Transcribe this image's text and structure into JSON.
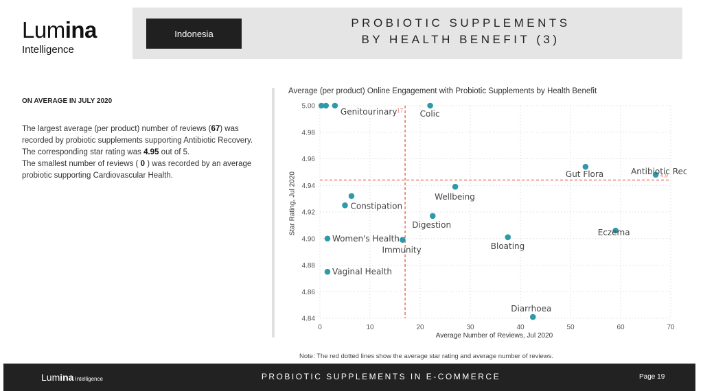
{
  "brand": {
    "name_light": "Lum",
    "name_bold": "ina",
    "sub": "Intelligence",
    "footer_sub": "Intelligence"
  },
  "header": {
    "country": "Indonesia",
    "title_line1": "PROBIOTIC SUPPLEMENTS",
    "title_line2": "BY HEALTH BENEFIT (3)"
  },
  "summary": {
    "heading": "ON AVERAGE IN JULY 2020",
    "p1_a": "The largest average (per product) number of reviews (",
    "p1_val": "67",
    "p1_b": ") was recorded by probiotic supplements supporting",
    "p1_benefit": "Antibiotic Recovery.",
    "p1_c": "The corresponding star rating was",
    "p1_rating": "4.95",
    "p1_d": "out of 5.",
    "p2_a": "The smallest number of reviews (",
    "p2_val": "0",
    "p2_b": ") was recorded by an average probiotic supporting",
    "p2_benefit": "Cardiovascular Health",
    "p2_c": "."
  },
  "chart_data": {
    "type": "scatter",
    "title": "Average (per product) Online Engagement with Probiotic Supplements by Health Benefit",
    "xlabel": "Average Number of Reviews, Jul 2020",
    "ylabel": "Star Rating, Jul 2020",
    "xlim": [
      0,
      70
    ],
    "ylim": [
      4.84,
      5.0
    ],
    "xticks": [
      0,
      10,
      20,
      30,
      40,
      50,
      60,
      70
    ],
    "yticks": [
      4.84,
      4.86,
      4.88,
      4.9,
      4.92,
      4.94,
      4.96,
      4.98,
      5.0
    ],
    "grid": true,
    "point_color": "#2e9aa8",
    "ref_color": "#f07a6a",
    "ref_lines": {
      "x": 17,
      "y": 4.944,
      "x_label": "17",
      "y_label": "4.9"
    },
    "points": [
      {
        "label": "Genitourinary",
        "x": 3,
        "y": 5.0
      },
      {
        "label": "",
        "x": 0.3,
        "y": 5.0
      },
      {
        "label": "",
        "x": 1.2,
        "y": 5.0
      },
      {
        "label": "Colic",
        "x": 22,
        "y": 5.0
      },
      {
        "label": "Antibiotic Recovery",
        "x": 67,
        "y": 4.948
      },
      {
        "label": "Gut Flora",
        "x": 53,
        "y": 4.954
      },
      {
        "label": "Wellbeing",
        "x": 27,
        "y": 4.939
      },
      {
        "label": "Constipation",
        "x": 5,
        "y": 4.925
      },
      {
        "label": "",
        "x": 6.3,
        "y": 4.932
      },
      {
        "label": "Digestion",
        "x": 22.5,
        "y": 4.917
      },
      {
        "label": "Women's Health",
        "x": 1.5,
        "y": 4.9
      },
      {
        "label": "Immunity",
        "x": 16.5,
        "y": 4.899
      },
      {
        "label": "Bloating",
        "x": 37.5,
        "y": 4.901
      },
      {
        "label": "Eczema",
        "x": 59,
        "y": 4.906
      },
      {
        "label": "Vaginal Health",
        "x": 1.5,
        "y": 4.875
      },
      {
        "label": "Diarrhoea",
        "x": 42.5,
        "y": 4.841
      }
    ]
  },
  "note": "Note: The red dotted lines show the average star rating and average number of reviews.",
  "footer": {
    "title": "PROBIOTIC SUPPLEMENTS IN E-COMMERCE",
    "page": "Page  19"
  }
}
